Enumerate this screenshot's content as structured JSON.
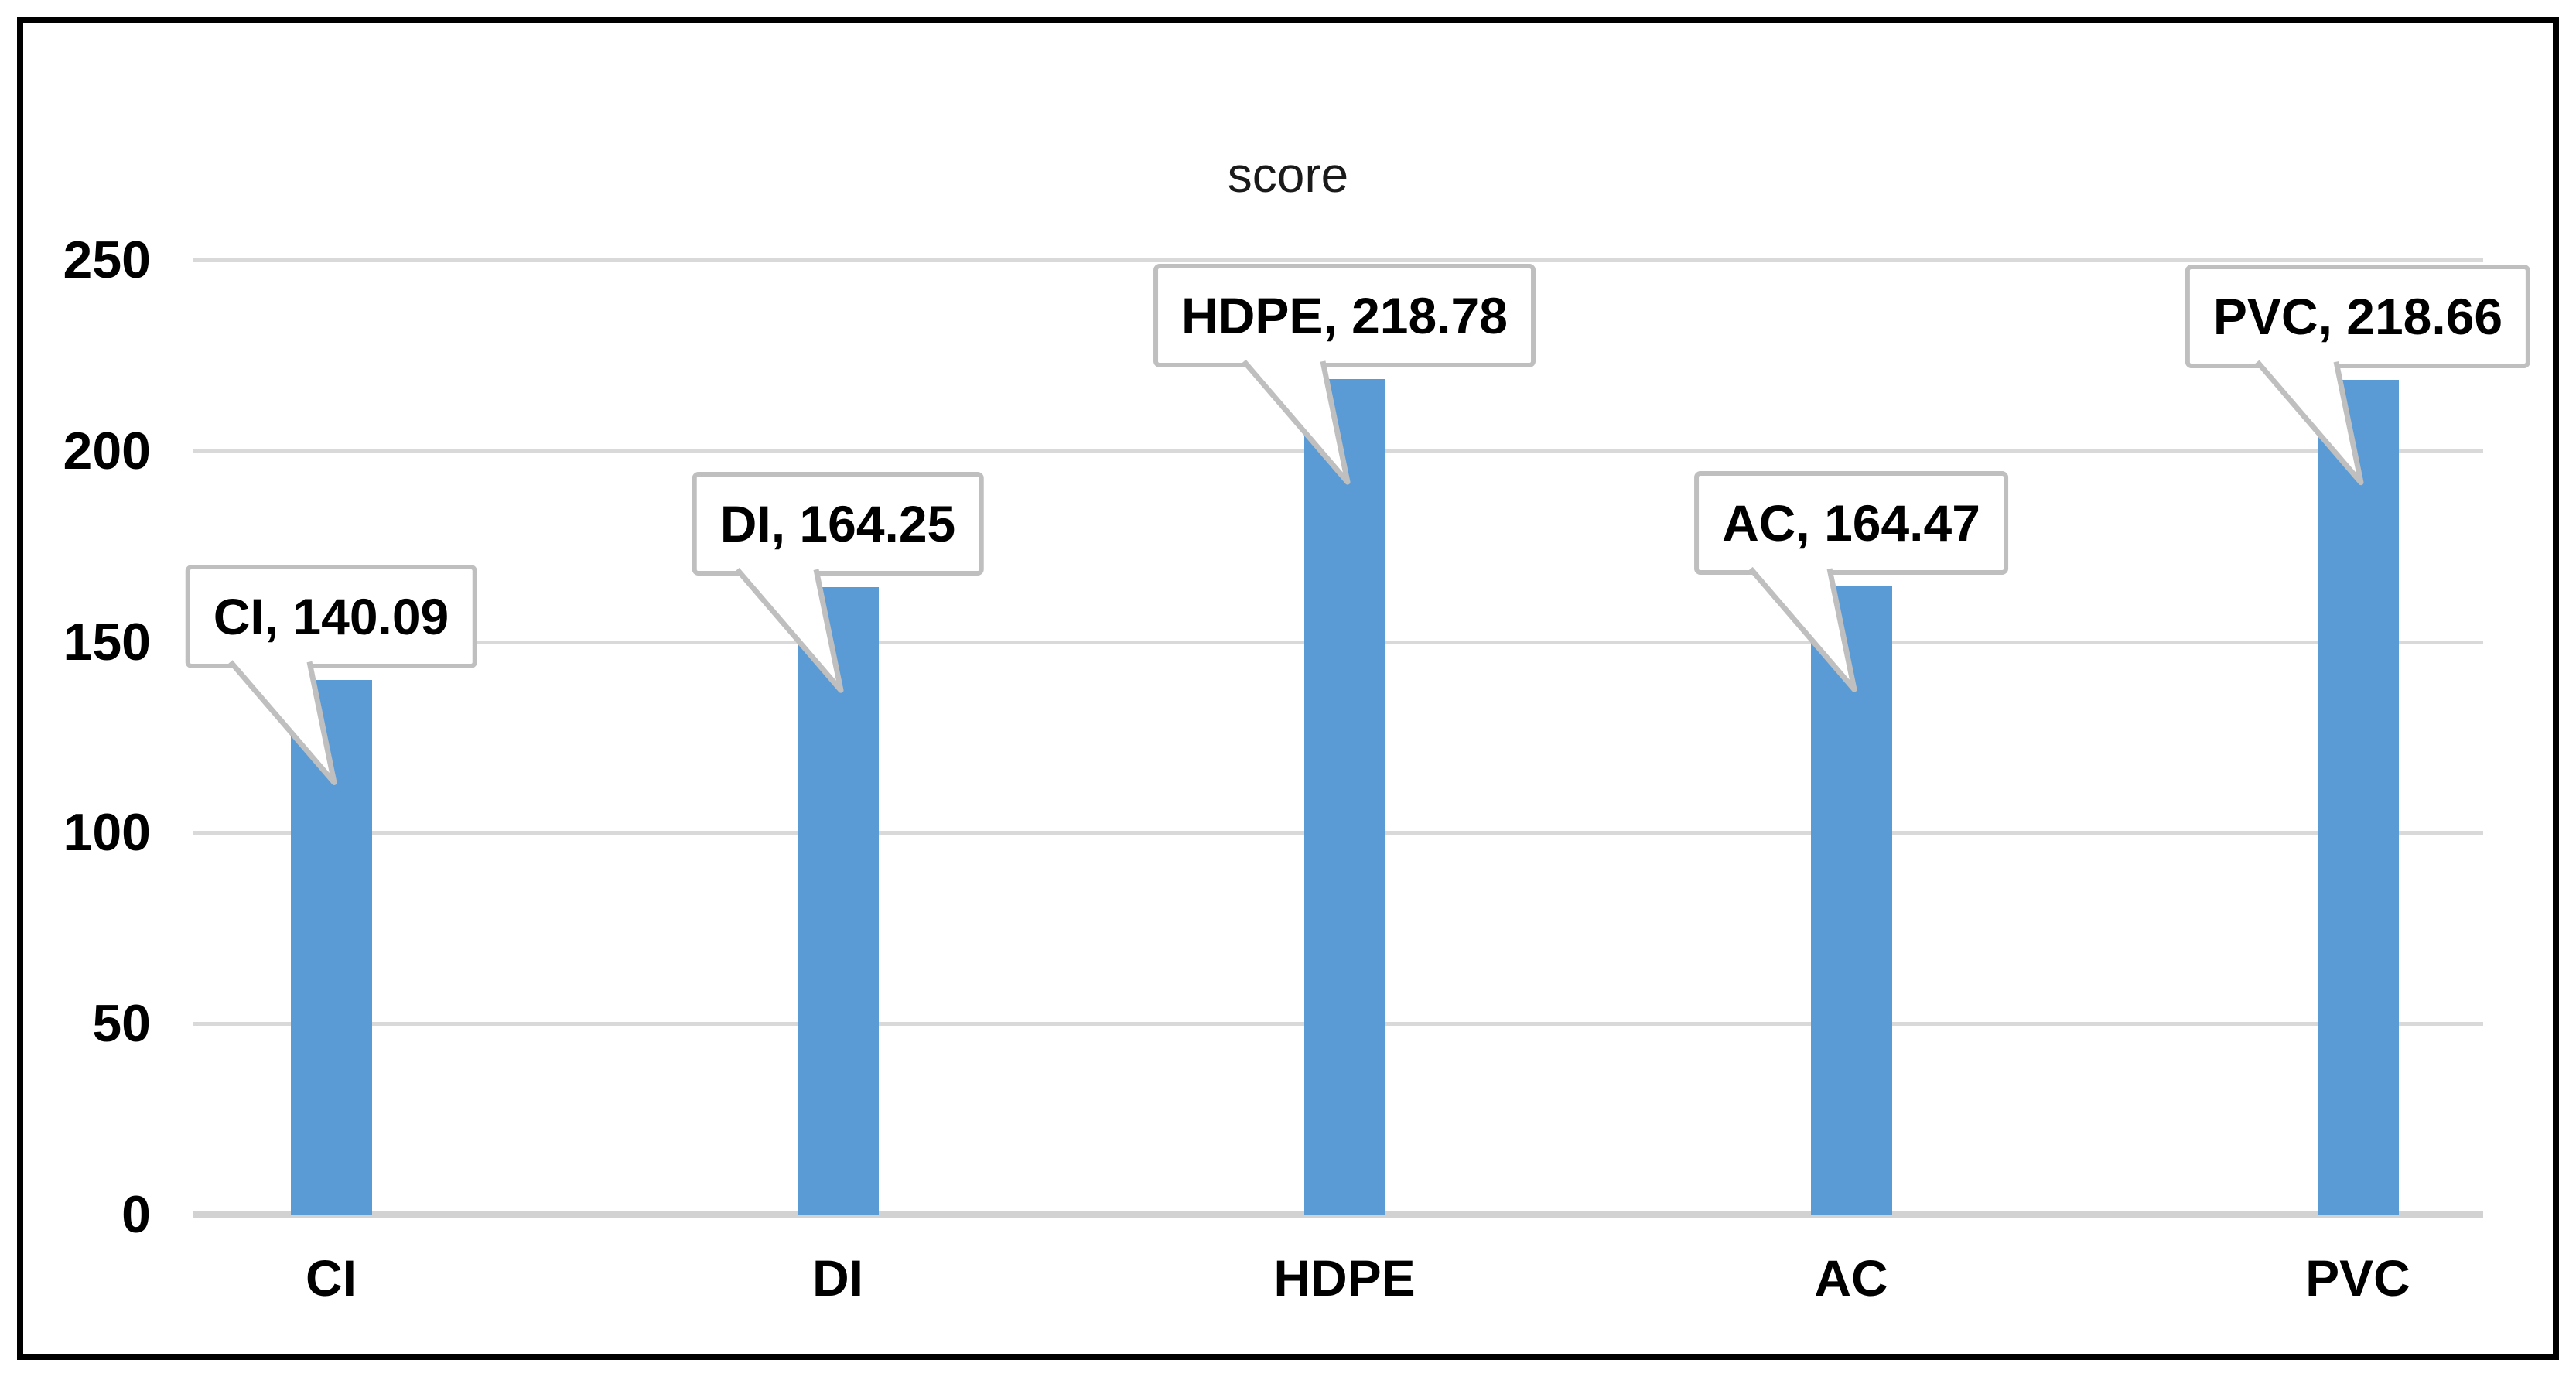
{
  "chart_data": {
    "type": "bar",
    "title": "score",
    "categories": [
      "CI",
      "DI",
      "HDPE",
      "AC",
      "PVC"
    ],
    "values": [
      140.09,
      164.25,
      218.78,
      164.47,
      218.66
    ],
    "data_labels": [
      "CI, 140.09",
      "DI, 164.25",
      "HDPE, 218.78",
      "AC, 164.47",
      "PVC, 218.66"
    ],
    "xlabel": "",
    "ylabel": "",
    "ylim": [
      0,
      250
    ],
    "yticks": [
      0,
      50,
      100,
      150,
      200,
      250
    ],
    "grid": true,
    "legend": "none",
    "data_label_style": "rectangular-callout-with-pointer",
    "colors": {
      "bar": "#5B9BD5",
      "gridline": "#D9D9D9",
      "baseline": "#D2D2D2",
      "callout_border": "#BFBFBF",
      "callout_fill": "#FFFFFF",
      "label_text": "#000000",
      "title_text": "#1a1a1a",
      "frame_border": "#000000",
      "background": "#FFFFFF"
    }
  }
}
